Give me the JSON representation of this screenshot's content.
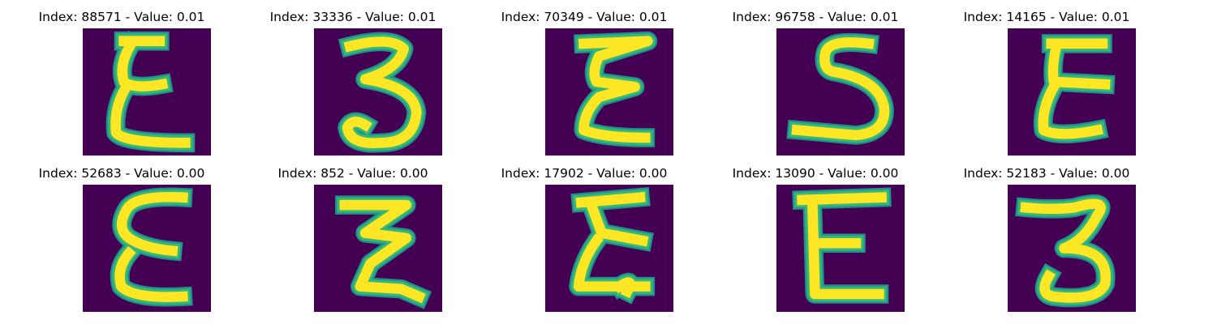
{
  "colors": {
    "background": "#440154",
    "stroke": "#fde725",
    "edge": "#35b779",
    "edge2": "#21918c"
  },
  "panels": [
    {
      "title": "Index: 88571 - Value: 0.01",
      "glyph": "epsilon"
    },
    {
      "title": "Index: 33336 - Value: 0.01",
      "glyph": "three"
    },
    {
      "title": "Index: 70349 - Value: 0.01",
      "glyph": "epsilon-zig"
    },
    {
      "title": "Index: 96758 - Value: 0.01",
      "glyph": "five"
    },
    {
      "title": "Index: 14165 - Value: 0.01",
      "glyph": "epsilon-curvy"
    },
    {
      "title": "Index: 52683 - Value: 0.00",
      "glyph": "epsilon-round"
    },
    {
      "title": "Index: 852 - Value: 0.00",
      "glyph": "zigzag"
    },
    {
      "title": "Index: 17902 - Value: 0.00",
      "glyph": "epsilon-thick"
    },
    {
      "title": "Index: 13090 - Value: 0.00",
      "glyph": "e-block"
    },
    {
      "title": "Index: 52183 - Value: 0.00",
      "glyph": "three-flat"
    }
  ]
}
